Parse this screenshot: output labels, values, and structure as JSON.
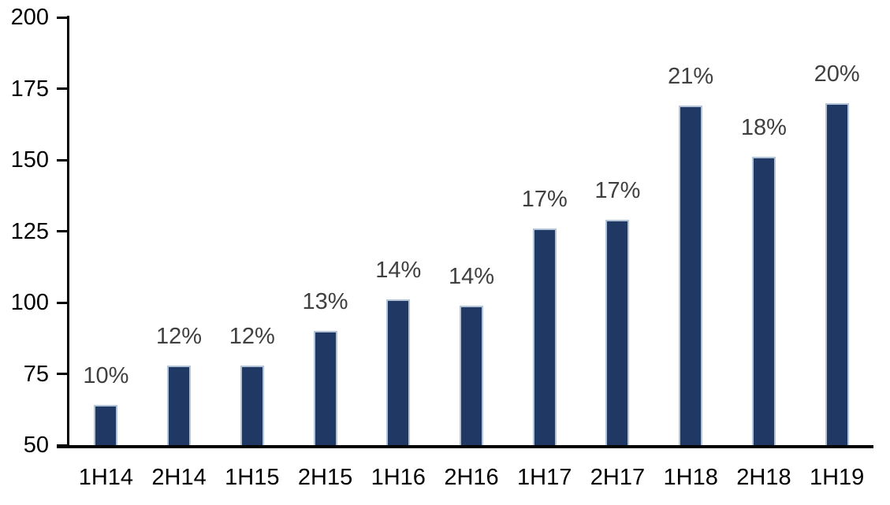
{
  "chart_data": {
    "type": "bar",
    "title": "",
    "xlabel": "",
    "ylabel": "",
    "categories": [
      "1H14",
      "2H14",
      "1H15",
      "2H15",
      "1H16",
      "2H16",
      "1H17",
      "2H17",
      "1H18",
      "2H18",
      "1H19"
    ],
    "values": [
      64,
      78,
      78,
      90,
      101,
      99,
      126,
      129,
      169,
      151,
      170
    ],
    "bar_labels": [
      "10%",
      "12%",
      "12%",
      "13%",
      "14%",
      "14%",
      "17%",
      "17%",
      "21%",
      "18%",
      "20%"
    ],
    "ylim": [
      50,
      200
    ],
    "yticks": [
      50,
      75,
      100,
      125,
      150,
      175,
      200
    ],
    "grid": false,
    "legend": false,
    "colors": {
      "bar_fill": "#1F3864",
      "bar_border": "#B4C4D8",
      "data_label": "#404040",
      "axis_text": "#000000",
      "axis_line": "#000000",
      "background": "#FFFFFF"
    }
  }
}
